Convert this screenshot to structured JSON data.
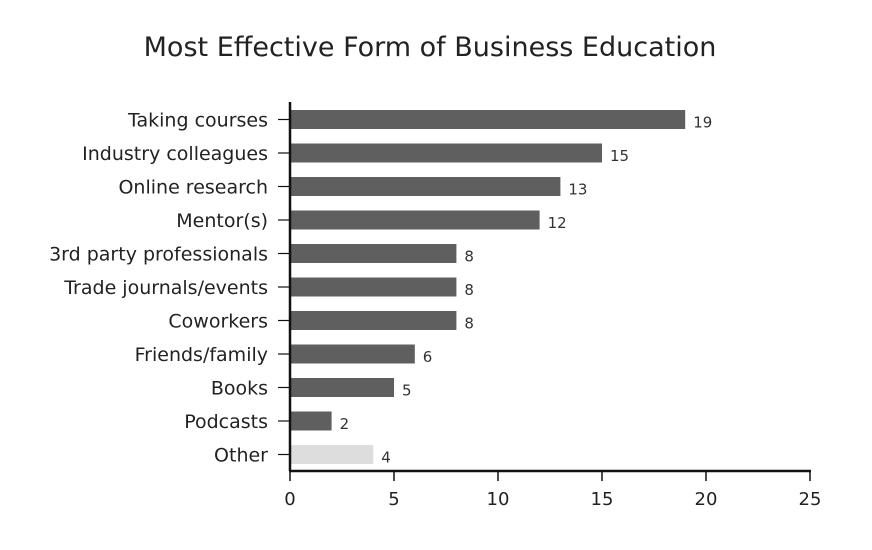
{
  "chart_data": {
    "type": "bar",
    "orientation": "horizontal",
    "title": "Most Effective Form of Business Education",
    "xlabel": "",
    "ylabel": "",
    "categories": [
      "Taking courses",
      "Industry colleagues",
      "Online research",
      "Mentor(s)",
      "3rd party professionals",
      "Trade journals/events",
      "Coworkers",
      "Friends/family",
      "Books",
      "Podcasts",
      "Other"
    ],
    "values": [
      19,
      15,
      13,
      12,
      8,
      8,
      8,
      6,
      5,
      2,
      4
    ],
    "bar_colors": [
      "#5f5f5f",
      "#5f5f5f",
      "#5f5f5f",
      "#5f5f5f",
      "#5f5f5f",
      "#5f5f5f",
      "#5f5f5f",
      "#5f5f5f",
      "#5f5f5f",
      "#5f5f5f",
      "#dddddd"
    ],
    "xlim": [
      0,
      25
    ],
    "xticks": [
      0,
      5,
      10,
      15,
      20,
      25
    ],
    "grid": false,
    "legend": "none"
  }
}
